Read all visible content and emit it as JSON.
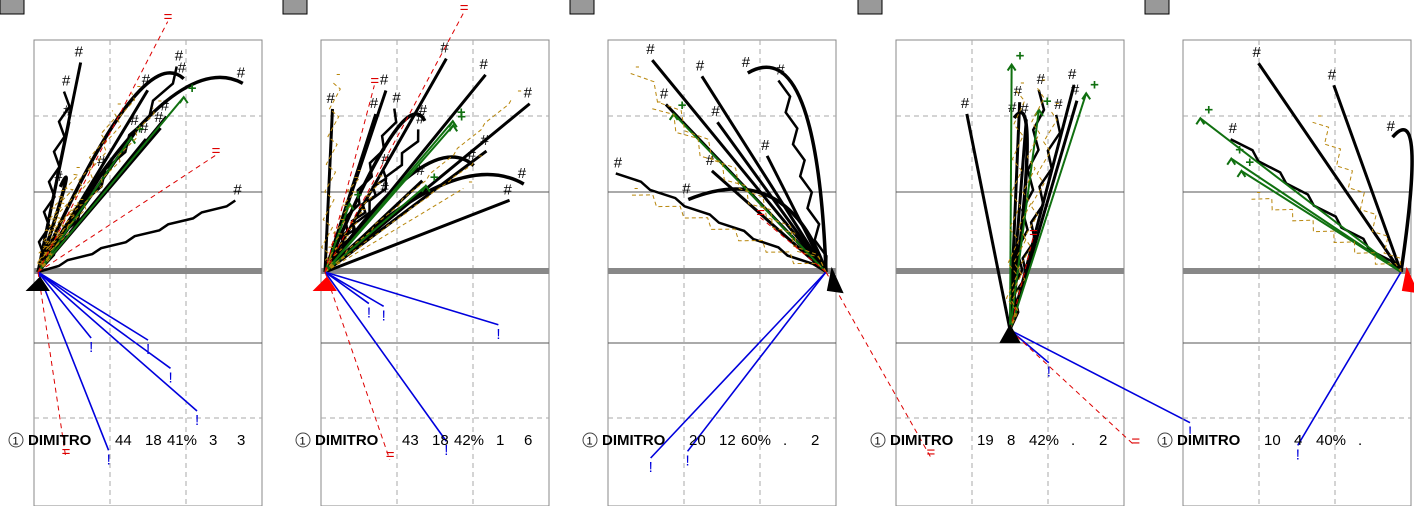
{
  "chart_data": [
    {
      "type": "other",
      "panel_number": "1",
      "player": "DIMITRO",
      "stats": [
        "44",
        "18",
        "41%",
        "3",
        "3"
      ],
      "marker_color": "#000000",
      "view": "left-field",
      "strokes": [
        {
          "kind": "fan_black",
          "n": 14
        },
        {
          "kind": "fan_green",
          "n": 2
        },
        {
          "kind": "fan_gold",
          "n": 6
        },
        {
          "kind": "fan_blue",
          "n": 5
        },
        {
          "kind": "fan_red",
          "n": 3
        }
      ]
    },
    {
      "type": "other",
      "panel_number": "1",
      "player": "DIMITRO",
      "stats": [
        "43",
        "18",
        "42%",
        "1",
        "6"
      ],
      "marker_color": "#ff0000",
      "view": "left-field",
      "strokes": [
        {
          "kind": "fan_black",
          "n": 16
        },
        {
          "kind": "fan_green",
          "n": 4
        },
        {
          "kind": "fan_gold",
          "n": 6
        },
        {
          "kind": "fan_blue",
          "n": 4
        },
        {
          "kind": "fan_red",
          "n": 3
        }
      ]
    },
    {
      "type": "other",
      "panel_number": "1",
      "player": "DIMITRO",
      "stats": [
        "20",
        "12",
        "60%",
        ".",
        "2"
      ],
      "marker_color": "#000000",
      "view": "right-field",
      "strokes": [
        {
          "kind": "fan_black",
          "n": 10
        },
        {
          "kind": "fan_green",
          "n": 1
        },
        {
          "kind": "fan_gold",
          "n": 3
        },
        {
          "kind": "fan_blue",
          "n": 2
        },
        {
          "kind": "fan_red",
          "n": 2
        }
      ]
    },
    {
      "type": "other",
      "panel_number": "1",
      "player": "DIMITRO",
      "stats": [
        "19",
        "8",
        "42%",
        ".",
        "2"
      ],
      "marker_color": "#000000",
      "view": "center",
      "strokes": [
        {
          "kind": "fan_black",
          "n": 8
        },
        {
          "kind": "fan_green",
          "n": 3
        },
        {
          "kind": "fan_gold",
          "n": 3
        },
        {
          "kind": "fan_blue",
          "n": 2
        },
        {
          "kind": "fan_red",
          "n": 2
        }
      ]
    },
    {
      "type": "other",
      "panel_number": "1",
      "player": "DIMITRO",
      "stats": [
        "10",
        "4",
        "40%",
        "."
      ],
      "marker_color": "#ff0000",
      "view": "right-field",
      "strokes": [
        {
          "kind": "fan_black",
          "n": 4
        },
        {
          "kind": "fan_green",
          "n": 3
        },
        {
          "kind": "fan_gold",
          "n": 2
        },
        {
          "kind": "fan_blue",
          "n": 1
        }
      ]
    }
  ]
}
